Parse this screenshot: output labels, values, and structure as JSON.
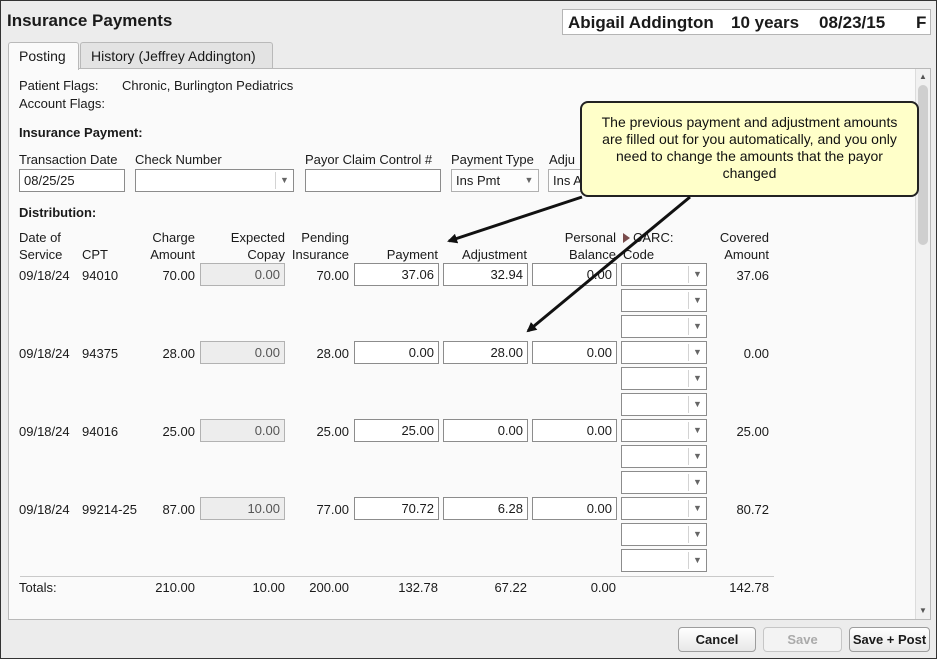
{
  "window": {
    "title": "Insurance Payments"
  },
  "patient": {
    "name": "Abigail Addington",
    "age": "10 years",
    "dob": "08/23/15",
    "sex": "F"
  },
  "tabs": [
    {
      "label": "Posting"
    },
    {
      "label": "History (Jeffrey Addington)"
    }
  ],
  "flags": {
    "patient_label": "Patient Flags:",
    "patient_value": "Chronic, Burlington Pediatrics",
    "account_label": "Account Flags:"
  },
  "insurance_payment": {
    "section_label": "Insurance Payment:",
    "transaction_date_label": "Transaction Date",
    "transaction_date": "08/25/25",
    "check_number_label": "Check Number",
    "check_number": "",
    "payor_claim_label": "Payor Claim Control #",
    "payor_claim": "",
    "payment_type_label": "Payment Type",
    "payment_type": "Ins Pmt",
    "adjustment_type_label": "Adju",
    "adjustment_type": "Ins A"
  },
  "distribution": {
    "section_label": "Distribution:",
    "headers": {
      "date_line1": "Date of",
      "date_line2": "Service",
      "cpt": "CPT",
      "charge_line1": "Charge",
      "charge_line2": "Amount",
      "expected_line1": "Expected",
      "expected_line2": "Copay",
      "pending_line1": "Pending",
      "pending_line2": "Insurance",
      "payment": "Payment",
      "adjustment": "Adjustment",
      "personal_line1": "Personal",
      "personal_line2": "Balance",
      "carc_line1": "CARC:",
      "carc_line2": "Code",
      "covered_line1": "Covered",
      "covered_line2": "Amount"
    },
    "rows": [
      {
        "date": "09/18/24",
        "cpt": "94010",
        "charge": "70.00",
        "copay": "0.00",
        "pending": "70.00",
        "payment": "37.06",
        "adjustment": "32.94",
        "personal": "0.00",
        "covered": "37.06"
      },
      {
        "date": "09/18/24",
        "cpt": "94375",
        "charge": "28.00",
        "copay": "0.00",
        "pending": "28.00",
        "payment": "0.00",
        "adjustment": "28.00",
        "personal": "0.00",
        "covered": "0.00"
      },
      {
        "date": "09/18/24",
        "cpt": "94016",
        "charge": "25.00",
        "copay": "0.00",
        "pending": "25.00",
        "payment": "25.00",
        "adjustment": "0.00",
        "personal": "0.00",
        "covered": "25.00"
      },
      {
        "date": "09/18/24",
        "cpt": "99214-25",
        "charge": "87.00",
        "copay": "10.00",
        "pending": "77.00",
        "payment": "70.72",
        "adjustment": "6.28",
        "personal": "0.00",
        "covered": "80.72"
      }
    ],
    "totals": {
      "label": "Totals:",
      "charge": "210.00",
      "copay": "10.00",
      "pending": "200.00",
      "payment": "132.78",
      "adjustment": "67.22",
      "personal": "0.00",
      "covered": "142.78"
    }
  },
  "callout": {
    "text": "The previous payment and adjustment amounts are filled out for you automatically, and you only need to change the amounts that the payor changed"
  },
  "buttons": {
    "cancel": "Cancel",
    "save": "Save",
    "save_post": "Save + Post"
  },
  "icons": {
    "dropdown": "chevron-down-icon",
    "scroll_up": "arrow-up-icon",
    "scroll_down": "arrow-down-icon",
    "carc_toggle": "triangle-right-icon"
  },
  "colors": {
    "callout_bg": "#ffffc9",
    "panel_bg": "#fafafa",
    "window_bg": "#ececec"
  }
}
